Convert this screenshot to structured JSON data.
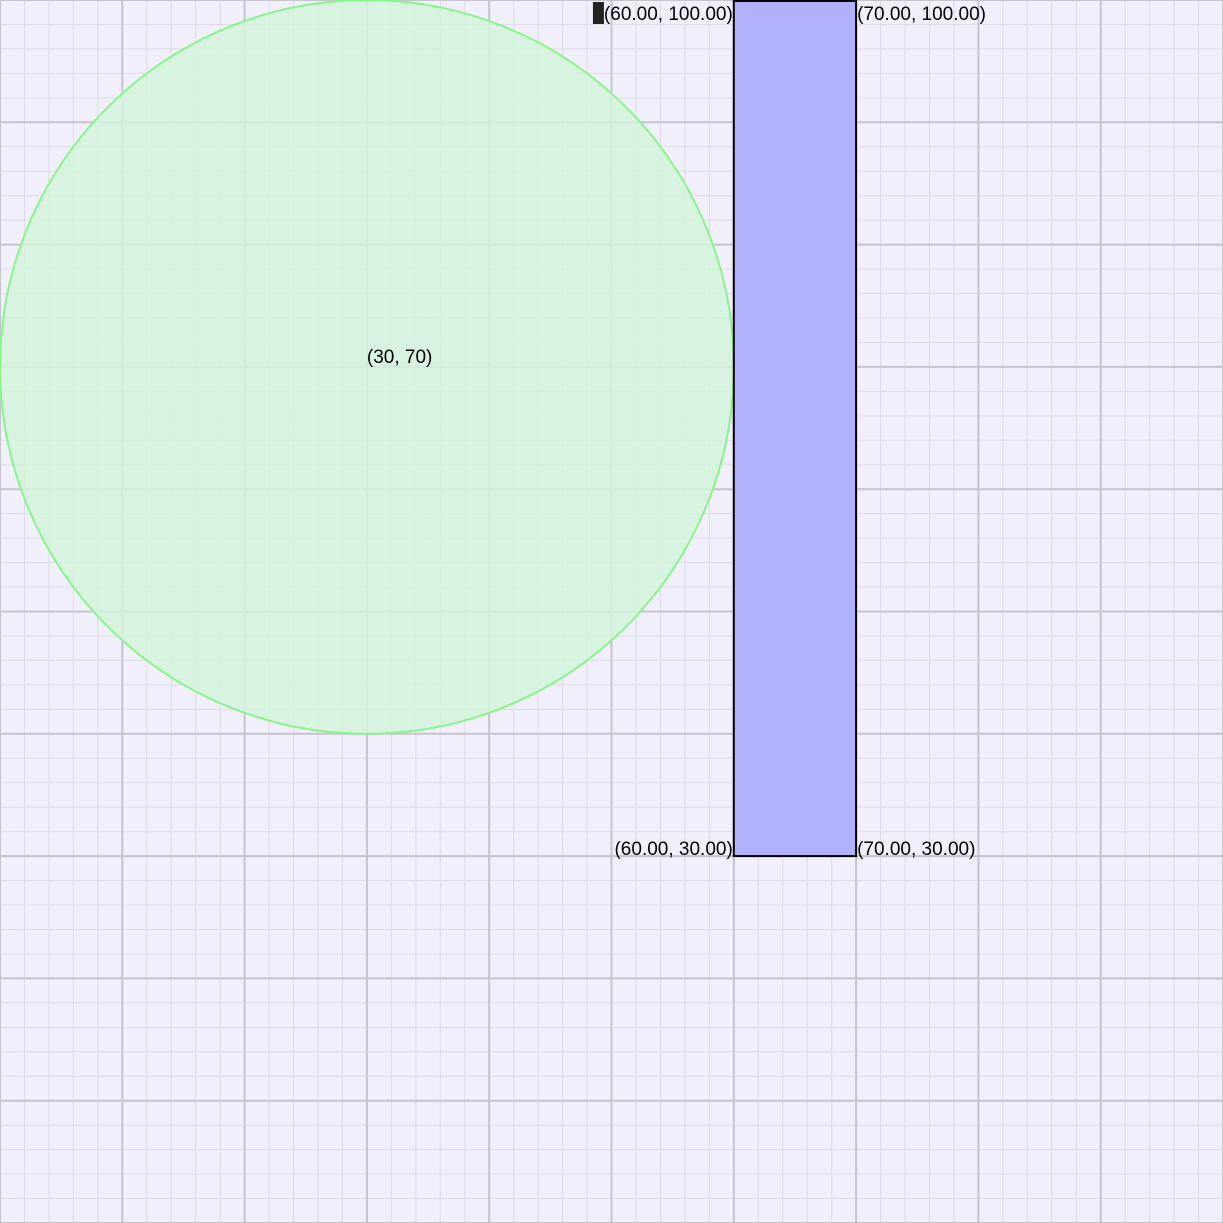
{
  "canvas": {
    "background": "#f0effb",
    "minor_grid_color": "#dcdbe8",
    "major_grid_color": "#c4c4ce",
    "x_range": [
      0,
      100
    ],
    "y_range": [
      0,
      100
    ],
    "major_step": 10,
    "minor_step": 2
  },
  "circle": {
    "center": [
      30,
      70
    ],
    "radius": 30,
    "fill": "#d3f3da",
    "stroke": "#88f58a",
    "center_label": "(30, 70)"
  },
  "rectangle": {
    "x_min": 60,
    "x_max": 70,
    "y_min": 30,
    "y_max": 100,
    "fill": "#b1b1fc",
    "stroke": "#000000",
    "corner_labels": {
      "top_left": "(60.00, 100.00)",
      "top_right": "(70.00, 100.00)",
      "bottom_left": "(60.00, 30.00)",
      "bottom_right": "(70.00, 30.00)"
    }
  },
  "cursor": {
    "color": "#222222"
  }
}
